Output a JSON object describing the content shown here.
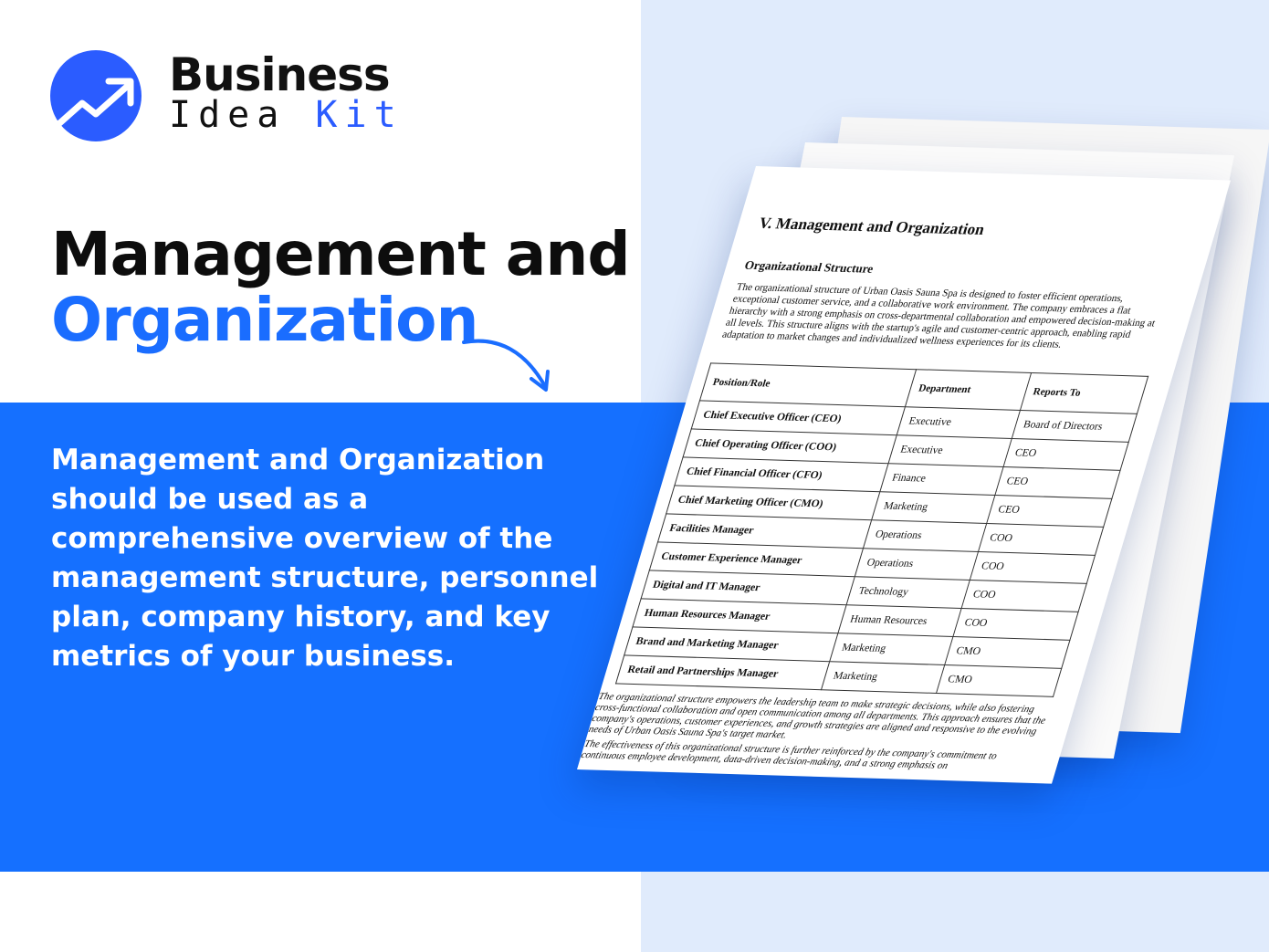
{
  "logo": {
    "word1": "Business",
    "word2": "Idea",
    "word3": "Kit",
    "brand_color": "#2b5cff"
  },
  "headline": {
    "line1": "Management and",
    "line2": "Organization",
    "accent": "#1a6dff"
  },
  "description": "Management and Organization should be used as a comprehensive overview of the management structure, personnel plan, company history, and key metrics of your business.",
  "document": {
    "title": "V. Management and Organization",
    "subtitle": "Organizational Structure",
    "paragraph": "The organizational structure of Urban Oasis Sauna Spa is designed to foster efficient operations, exceptional customer service, and a collaborative work environment. The company embraces a flat hierarchy with a strong emphasis on cross-departmental collaboration and empowered decision-making at all levels. This structure aligns with the startup's agile and customer-centric approach, enabling rapid adaptation to market changes and individualized wellness experiences for its clients.",
    "table": {
      "headers": [
        "Position/Role",
        "Department",
        "Reports To"
      ],
      "rows": [
        [
          "Chief Executive Officer (CEO)",
          "Executive",
          "Board of Directors"
        ],
        [
          "Chief Operating Officer (COO)",
          "Executive",
          "CEO"
        ],
        [
          "Chief Financial Officer (CFO)",
          "Finance",
          "CEO"
        ],
        [
          "Chief Marketing Officer (CMO)",
          "Marketing",
          "CEO"
        ],
        [
          "Facilities Manager",
          "Operations",
          "COO"
        ],
        [
          "Customer Experience Manager",
          "Operations",
          "COO"
        ],
        [
          "Digital and IT Manager",
          "Technology",
          "COO"
        ],
        [
          "Human Resources Manager",
          "Human Resources",
          "COO"
        ],
        [
          "Brand and Marketing Manager",
          "Marketing",
          "CMO"
        ],
        [
          "Retail and Partnerships Manager",
          "Marketing",
          "CMO"
        ]
      ]
    },
    "closing_1": "The organizational structure empowers the leadership team to make strategic decisions, while also fostering cross-functional collaboration and open communication among all departments. This approach ensures that the company's operations, customer experiences, and growth strategies are aligned and responsive to the evolving needs of Urban Oasis Sauna Spa's target market.",
    "closing_2": "The effectiveness of this organizational structure is further reinforced by the company's commitment to continuous employee development, data-driven decision-making, and a strong emphasis on"
  }
}
